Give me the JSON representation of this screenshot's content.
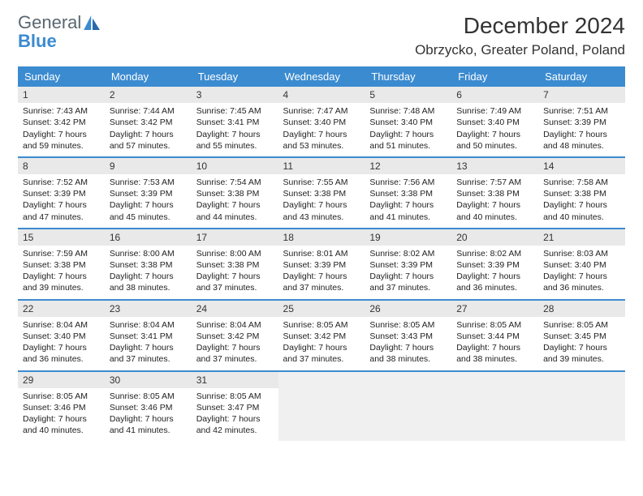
{
  "logo": {
    "line1": "General",
    "line2": "Blue"
  },
  "title": "December 2024",
  "location": "Obrzycko, Greater Poland, Poland",
  "colors": {
    "header_bg": "#3b8bd0",
    "header_fg": "#ffffff",
    "rule": "#3b8bd0",
    "daynum_bg": "#e9e9e9",
    "blank_bg": "#f0f0f0",
    "text": "#222222",
    "logo_gray": "#5a6770",
    "logo_blue": "#3b8bd0"
  },
  "columns": [
    "Sunday",
    "Monday",
    "Tuesday",
    "Wednesday",
    "Thursday",
    "Friday",
    "Saturday"
  ],
  "col_width_pct": 14.28,
  "days": [
    {
      "n": 1,
      "sunrise": "7:43 AM",
      "sunset": "3:42 PM",
      "daylight": "7 hours and 59 minutes."
    },
    {
      "n": 2,
      "sunrise": "7:44 AM",
      "sunset": "3:42 PM",
      "daylight": "7 hours and 57 minutes."
    },
    {
      "n": 3,
      "sunrise": "7:45 AM",
      "sunset": "3:41 PM",
      "daylight": "7 hours and 55 minutes."
    },
    {
      "n": 4,
      "sunrise": "7:47 AM",
      "sunset": "3:40 PM",
      "daylight": "7 hours and 53 minutes."
    },
    {
      "n": 5,
      "sunrise": "7:48 AM",
      "sunset": "3:40 PM",
      "daylight": "7 hours and 51 minutes."
    },
    {
      "n": 6,
      "sunrise": "7:49 AM",
      "sunset": "3:40 PM",
      "daylight": "7 hours and 50 minutes."
    },
    {
      "n": 7,
      "sunrise": "7:51 AM",
      "sunset": "3:39 PM",
      "daylight": "7 hours and 48 minutes."
    },
    {
      "n": 8,
      "sunrise": "7:52 AM",
      "sunset": "3:39 PM",
      "daylight": "7 hours and 47 minutes."
    },
    {
      "n": 9,
      "sunrise": "7:53 AM",
      "sunset": "3:39 PM",
      "daylight": "7 hours and 45 minutes."
    },
    {
      "n": 10,
      "sunrise": "7:54 AM",
      "sunset": "3:38 PM",
      "daylight": "7 hours and 44 minutes."
    },
    {
      "n": 11,
      "sunrise": "7:55 AM",
      "sunset": "3:38 PM",
      "daylight": "7 hours and 43 minutes."
    },
    {
      "n": 12,
      "sunrise": "7:56 AM",
      "sunset": "3:38 PM",
      "daylight": "7 hours and 41 minutes."
    },
    {
      "n": 13,
      "sunrise": "7:57 AM",
      "sunset": "3:38 PM",
      "daylight": "7 hours and 40 minutes."
    },
    {
      "n": 14,
      "sunrise": "7:58 AM",
      "sunset": "3:38 PM",
      "daylight": "7 hours and 40 minutes."
    },
    {
      "n": 15,
      "sunrise": "7:59 AM",
      "sunset": "3:38 PM",
      "daylight": "7 hours and 39 minutes."
    },
    {
      "n": 16,
      "sunrise": "8:00 AM",
      "sunset": "3:38 PM",
      "daylight": "7 hours and 38 minutes."
    },
    {
      "n": 17,
      "sunrise": "8:00 AM",
      "sunset": "3:38 PM",
      "daylight": "7 hours and 37 minutes."
    },
    {
      "n": 18,
      "sunrise": "8:01 AM",
      "sunset": "3:39 PM",
      "daylight": "7 hours and 37 minutes."
    },
    {
      "n": 19,
      "sunrise": "8:02 AM",
      "sunset": "3:39 PM",
      "daylight": "7 hours and 37 minutes."
    },
    {
      "n": 20,
      "sunrise": "8:02 AM",
      "sunset": "3:39 PM",
      "daylight": "7 hours and 36 minutes."
    },
    {
      "n": 21,
      "sunrise": "8:03 AM",
      "sunset": "3:40 PM",
      "daylight": "7 hours and 36 minutes."
    },
    {
      "n": 22,
      "sunrise": "8:04 AM",
      "sunset": "3:40 PM",
      "daylight": "7 hours and 36 minutes."
    },
    {
      "n": 23,
      "sunrise": "8:04 AM",
      "sunset": "3:41 PM",
      "daylight": "7 hours and 37 minutes."
    },
    {
      "n": 24,
      "sunrise": "8:04 AM",
      "sunset": "3:42 PM",
      "daylight": "7 hours and 37 minutes."
    },
    {
      "n": 25,
      "sunrise": "8:05 AM",
      "sunset": "3:42 PM",
      "daylight": "7 hours and 37 minutes."
    },
    {
      "n": 26,
      "sunrise": "8:05 AM",
      "sunset": "3:43 PM",
      "daylight": "7 hours and 38 minutes."
    },
    {
      "n": 27,
      "sunrise": "8:05 AM",
      "sunset": "3:44 PM",
      "daylight": "7 hours and 38 minutes."
    },
    {
      "n": 28,
      "sunrise": "8:05 AM",
      "sunset": "3:45 PM",
      "daylight": "7 hours and 39 minutes."
    },
    {
      "n": 29,
      "sunrise": "8:05 AM",
      "sunset": "3:46 PM",
      "daylight": "7 hours and 40 minutes."
    },
    {
      "n": 30,
      "sunrise": "8:05 AM",
      "sunset": "3:46 PM",
      "daylight": "7 hours and 41 minutes."
    },
    {
      "n": 31,
      "sunrise": "8:05 AM",
      "sunset": "3:47 PM",
      "daylight": "7 hours and 42 minutes."
    }
  ],
  "labels": {
    "sunrise": "Sunrise:",
    "sunset": "Sunset:",
    "daylight": "Daylight:"
  },
  "start_weekday": 0,
  "total_cells": 35
}
